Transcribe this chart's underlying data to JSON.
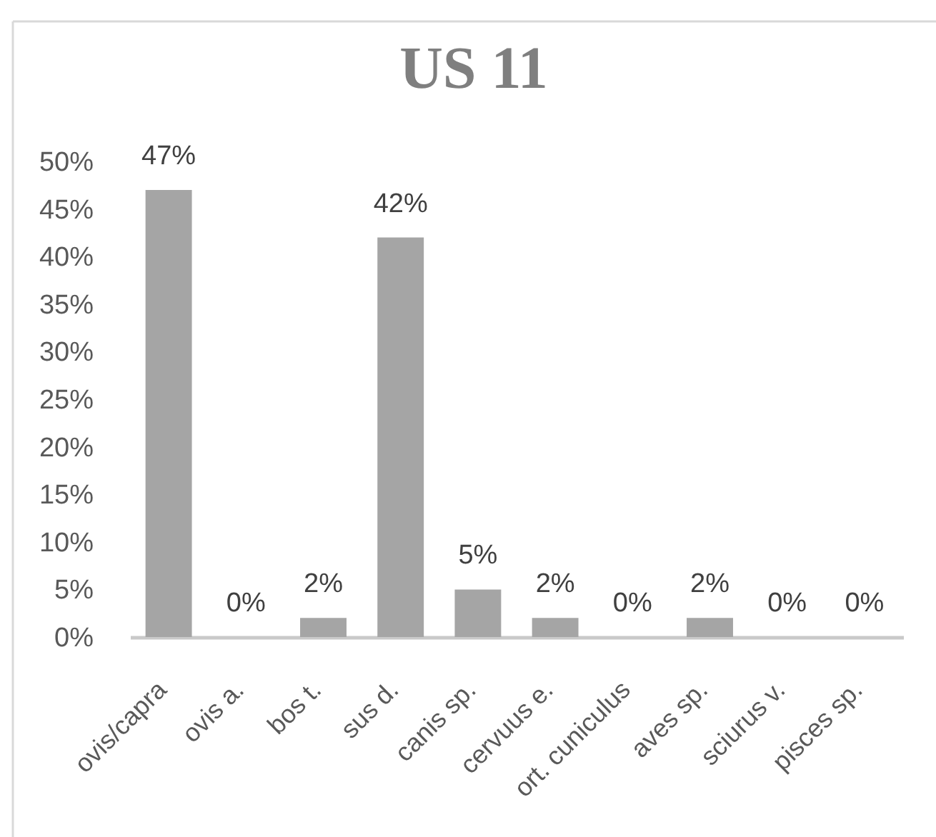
{
  "chart_data": {
    "type": "bar",
    "title": "US 11",
    "categories": [
      "ovis/capra",
      "ovis a.",
      "bos t.",
      "sus d.",
      "canis sp.",
      "cervuus e.",
      "ort. cuniculus",
      "aves sp.",
      "sciurus v.",
      "pisces sp."
    ],
    "values": [
      47,
      0,
      2,
      42,
      5,
      2,
      0,
      2,
      0,
      0
    ],
    "value_labels": [
      "47%",
      "0%",
      "2%",
      "42%",
      "5%",
      "2%",
      "0%",
      "2%",
      "0%",
      "0%"
    ],
    "color": "#a5a5a5",
    "ylim": [
      0,
      50
    ],
    "yticks": [
      {
        "value": 0,
        "label": "0%"
      },
      {
        "value": 5,
        "label": "5%"
      },
      {
        "value": 10,
        "label": "10%"
      },
      {
        "value": 15,
        "label": "15%"
      },
      {
        "value": 20,
        "label": "20%"
      },
      {
        "value": 25,
        "label": "25%"
      },
      {
        "value": 30,
        "label": "30%"
      },
      {
        "value": 35,
        "label": "35%"
      },
      {
        "value": 40,
        "label": "40%"
      },
      {
        "value": 45,
        "label": "45%"
      },
      {
        "value": 50,
        "label": "50%"
      }
    ],
    "grid": false
  }
}
